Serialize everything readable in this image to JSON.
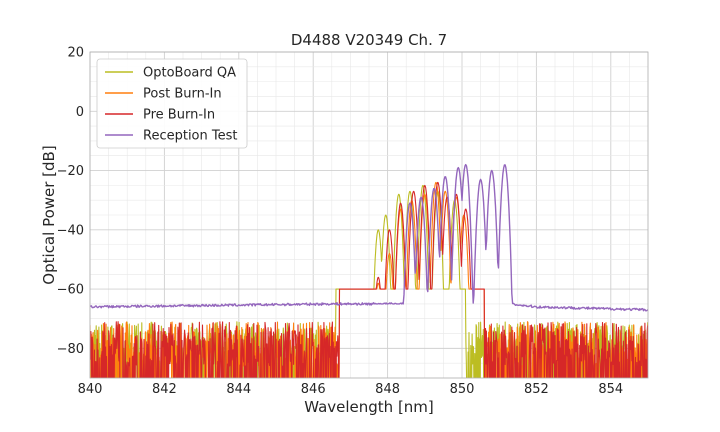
{
  "chart_data": {
    "type": "line",
    "title": "D4488 V20349 Ch. 7",
    "xlabel": "Wavelength [nm]",
    "ylabel": "Optical Power [dB]",
    "xlim": [
      840,
      855
    ],
    "ylim": [
      -90,
      20
    ],
    "xticks": [
      840,
      842,
      844,
      846,
      848,
      850,
      852,
      854
    ],
    "yticks": [
      20,
      0,
      -20,
      -40,
      -60,
      -80
    ],
    "xtick_labels": [
      "840",
      "842",
      "844",
      "846",
      "848",
      "850",
      "852",
      "854"
    ],
    "ytick_labels": [
      "20",
      "0",
      "−20",
      "−40",
      "−60",
      "−80"
    ],
    "grid": true,
    "legend_position": "top-left",
    "series": [
      {
        "name": "OptoBoard QA",
        "color": "#bcbd22",
        "peaks": [
          [
            847.75,
            -40
          ],
          [
            847.95,
            -35
          ],
          [
            848.3,
            -28
          ],
          [
            848.6,
            -27
          ],
          [
            848.95,
            -25
          ],
          [
            849.35,
            -27
          ],
          [
            849.8,
            -30
          ]
        ],
        "noise_floor_until": 846.5,
        "band_edges": [
          846.6,
          850.1
        ]
      },
      {
        "name": "Post Burn-In",
        "color": "#ff7f0e",
        "peaks": [
          [
            847.75,
            -58
          ],
          [
            848.05,
            -48
          ],
          [
            848.35,
            -33
          ],
          [
            848.65,
            -30
          ],
          [
            849.0,
            -28
          ],
          [
            849.3,
            -24
          ],
          [
            849.55,
            -27
          ],
          [
            849.85,
            -29
          ],
          [
            850.05,
            -35
          ]
        ],
        "noise_floor_until": 846.7,
        "band_edges": [
          846.7,
          850.6
        ]
      },
      {
        "name": "Pre Burn-In",
        "color": "#d62728",
        "peaks": [
          [
            847.75,
            -56
          ],
          [
            848.05,
            -40
          ],
          [
            848.35,
            -31
          ],
          [
            848.7,
            -27
          ],
          [
            849.0,
            -25
          ],
          [
            849.35,
            -24
          ],
          [
            849.6,
            -29
          ],
          [
            849.85,
            -28
          ],
          [
            850.1,
            -33
          ]
        ],
        "noise_floor_until": 846.7,
        "band_edges": [
          846.7,
          850.6
        ]
      },
      {
        "name": "Reception Test",
        "color": "#9467bd",
        "baseline": [
          [
            840,
            -66
          ],
          [
            846.5,
            -65
          ],
          [
            847.5,
            -65
          ],
          [
            851.3,
            -65
          ],
          [
            852,
            -66
          ],
          [
            855,
            -67
          ]
        ],
        "peaks": [
          [
            848.6,
            -31
          ],
          [
            848.9,
            -29
          ],
          [
            849.25,
            -26
          ],
          [
            849.55,
            -22
          ],
          [
            849.9,
            -19
          ],
          [
            850.1,
            -18
          ],
          [
            850.5,
            -23
          ],
          [
            850.8,
            -20
          ],
          [
            851.15,
            -18
          ]
        ],
        "band_edges": [
          847.6,
          851.4
        ]
      }
    ]
  }
}
